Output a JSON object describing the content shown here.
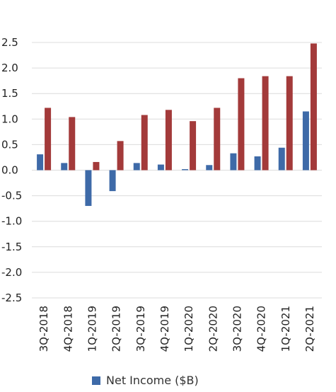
{
  "chart_data": {
    "type": "bar",
    "categories": [
      "3Q-2018",
      "4Q-2018",
      "1Q-2019",
      "2Q-2019",
      "3Q-2019",
      "4Q-2019",
      "1Q-2020",
      "2Q-2020",
      "3Q-2020",
      "4Q-2020",
      "1Q-2021",
      "2Q-2021"
    ],
    "series": [
      {
        "name": "Net Income ($B)",
        "color": "#3e6aa8",
        "values": [
          0.31,
          0.14,
          -0.7,
          -0.41,
          0.14,
          0.11,
          0.02,
          0.1,
          0.33,
          0.27,
          0.44,
          1.15
        ]
      },
      {
        "name": "",
        "color": "#a33a3a",
        "values": [
          1.22,
          1.04,
          0.16,
          0.57,
          1.08,
          1.18,
          0.96,
          1.22,
          1.8,
          1.84,
          1.84,
          2.48
        ]
      }
    ],
    "yticks": [
      "2.5",
      "2.0",
      "1.5",
      "1.0",
      "0.5",
      "0.0",
      "-0.5",
      "-1.0",
      "-1.5",
      "-2.0",
      "-2.5"
    ],
    "ylim": [
      -2.5,
      2.5
    ],
    "grid": true,
    "legend_position": "bottom"
  }
}
